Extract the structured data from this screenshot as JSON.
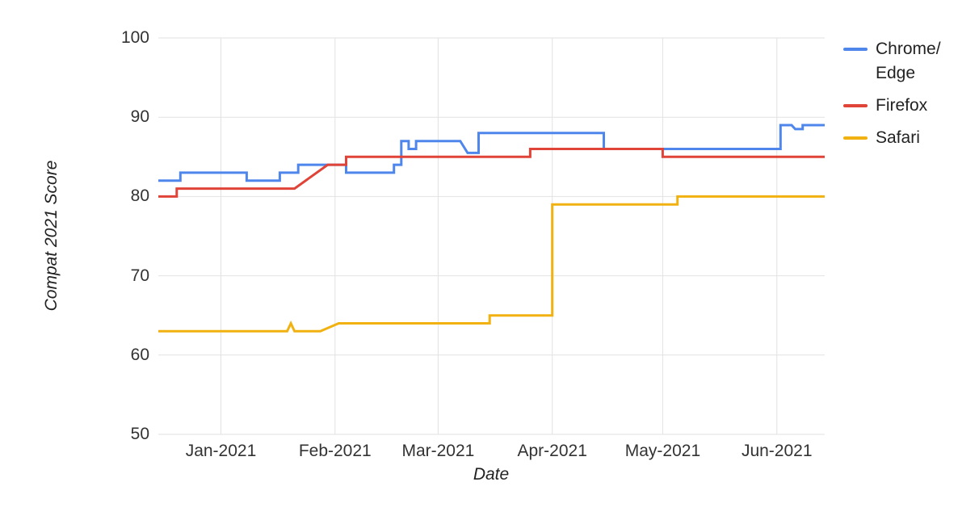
{
  "chart_data": {
    "type": "line",
    "title": "",
    "xlabel": "Date",
    "ylabel": "Compat 2021 Score",
    "ylim": [
      50,
      100
    ],
    "yticks": [
      50,
      60,
      70,
      80,
      90,
      100
    ],
    "x_range": [
      "2020-12-15",
      "2021-06-14"
    ],
    "xticks": [
      {
        "date": "2021-01-01",
        "label": "Jan-2021"
      },
      {
        "date": "2021-02-01",
        "label": "Feb-2021"
      },
      {
        "date": "2021-03-01",
        "label": "Mar-2021"
      },
      {
        "date": "2021-04-01",
        "label": "Apr-2021"
      },
      {
        "date": "2021-05-01",
        "label": "May-2021"
      },
      {
        "date": "2021-06-01",
        "label": "Jun-2021"
      }
    ],
    "grid": true,
    "grid_color": "#e2e2e2",
    "background": "#ffffff",
    "legend_position": "right",
    "series": [
      {
        "name": "Chrome/Edge",
        "legend_lines": [
          "Chrome/",
          "Edge"
        ],
        "color": "#4e86ec",
        "points": [
          [
            "2020-12-15",
            82
          ],
          [
            "2020-12-21",
            82
          ],
          [
            "2020-12-21",
            83
          ],
          [
            "2021-01-08",
            83
          ],
          [
            "2021-01-08",
            82
          ],
          [
            "2021-01-17",
            82
          ],
          [
            "2021-01-17",
            83
          ],
          [
            "2021-01-22",
            83
          ],
          [
            "2021-01-22",
            84
          ],
          [
            "2021-02-04",
            84
          ],
          [
            "2021-02-04",
            83
          ],
          [
            "2021-02-17",
            83
          ],
          [
            "2021-02-17",
            84
          ],
          [
            "2021-02-19",
            84
          ],
          [
            "2021-02-19",
            87
          ],
          [
            "2021-02-21",
            87
          ],
          [
            "2021-02-21",
            86
          ],
          [
            "2021-02-23",
            86
          ],
          [
            "2021-02-23",
            87
          ],
          [
            "2021-03-07",
            87
          ],
          [
            "2021-03-09",
            85.5
          ],
          [
            "2021-03-12",
            85.5
          ],
          [
            "2021-03-12",
            88
          ],
          [
            "2021-04-15",
            88
          ],
          [
            "2021-04-15",
            86
          ],
          [
            "2021-06-02",
            86
          ],
          [
            "2021-06-02",
            89
          ],
          [
            "2021-06-05",
            89
          ],
          [
            "2021-06-06",
            88.5
          ],
          [
            "2021-06-08",
            88.5
          ],
          [
            "2021-06-08",
            89
          ],
          [
            "2021-06-14",
            89
          ]
        ]
      },
      {
        "name": "Firefox",
        "legend_lines": [
          "Firefox"
        ],
        "color": "#e04337",
        "points": [
          [
            "2020-12-15",
            80
          ],
          [
            "2020-12-20",
            80
          ],
          [
            "2020-12-20",
            81
          ],
          [
            "2021-01-21",
            81
          ],
          [
            "2021-01-30",
            84
          ],
          [
            "2021-02-04",
            84
          ],
          [
            "2021-02-04",
            85
          ],
          [
            "2021-03-26",
            85
          ],
          [
            "2021-03-26",
            86
          ],
          [
            "2021-05-01",
            86
          ],
          [
            "2021-05-01",
            85
          ],
          [
            "2021-06-14",
            85
          ]
        ]
      },
      {
        "name": "Safari",
        "legend_lines": [
          "Safari"
        ],
        "color": "#f1b211",
        "points": [
          [
            "2020-12-15",
            63
          ],
          [
            "2021-01-19",
            63
          ],
          [
            "2021-01-20",
            64
          ],
          [
            "2021-01-21",
            63
          ],
          [
            "2021-01-28",
            63
          ],
          [
            "2021-02-02",
            64
          ],
          [
            "2021-03-15",
            64
          ],
          [
            "2021-03-15",
            65
          ],
          [
            "2021-04-01",
            65
          ],
          [
            "2021-04-01",
            79
          ],
          [
            "2021-05-05",
            79
          ],
          [
            "2021-05-05",
            80
          ],
          [
            "2021-06-14",
            80
          ]
        ]
      }
    ]
  }
}
